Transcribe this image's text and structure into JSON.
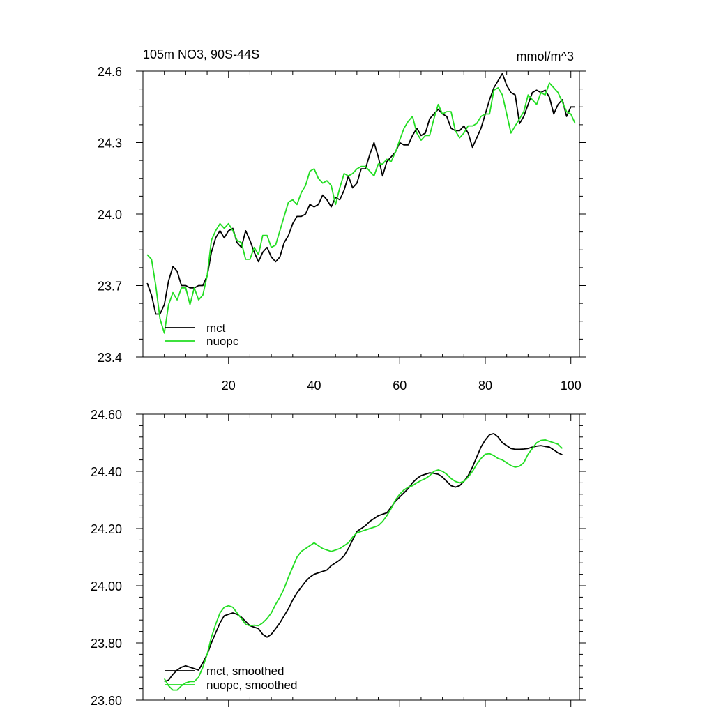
{
  "chart_data": [
    {
      "type": "line",
      "title": "105m NO3, 90S-44S",
      "units": "mmol/m^3",
      "xlim": [
        0,
        102
      ],
      "ylim": [
        23.4,
        24.6
      ],
      "xticks": [
        20,
        40,
        60,
        80,
        100
      ],
      "xtick_labels": [
        "20",
        "40",
        "60",
        "80",
        "100"
      ],
      "yticks": [
        23.4,
        23.7,
        24.0,
        24.3,
        24.6
      ],
      "ytick_labels": [
        "23.4",
        "23.7",
        "24.0",
        "24.3",
        "24.6"
      ],
      "legend_position": "bottom-left",
      "series": [
        {
          "name": "mct",
          "color": "#000000",
          "x": [
            1,
            2,
            3,
            4,
            5,
            6,
            7,
            8,
            9,
            10,
            11,
            12,
            13,
            14,
            15,
            16,
            17,
            18,
            19,
            20,
            21,
            22,
            23,
            24,
            25,
            26,
            27,
            28,
            29,
            30,
            31,
            32,
            33,
            34,
            35,
            36,
            37,
            38,
            39,
            40,
            41,
            42,
            43,
            44,
            45,
            46,
            47,
            48,
            49,
            50,
            51,
            52,
            53,
            54,
            55,
            56,
            57,
            58,
            59,
            60,
            61,
            62,
            63,
            64,
            65,
            66,
            67,
            68,
            69,
            70,
            71,
            72,
            73,
            74,
            75,
            76,
            77,
            78,
            79,
            80,
            81,
            82,
            83,
            84,
            85,
            86,
            87,
            88,
            89,
            90,
            91,
            92,
            93,
            94,
            95,
            96,
            97,
            98,
            99,
            100,
            101
          ],
          "values": [
            23.71,
            23.66,
            23.58,
            23.58,
            23.62,
            23.72,
            23.78,
            23.76,
            23.7,
            23.7,
            23.69,
            23.69,
            23.7,
            23.7,
            23.74,
            23.84,
            23.9,
            23.93,
            23.9,
            23.93,
            23.94,
            23.88,
            23.86,
            23.93,
            23.89,
            23.84,
            23.8,
            23.84,
            23.86,
            23.82,
            23.8,
            23.82,
            23.88,
            23.91,
            23.96,
            23.99,
            23.99,
            24.0,
            24.04,
            24.03,
            24.04,
            24.08,
            24.06,
            24.03,
            24.07,
            24.06,
            24.1,
            24.16,
            24.11,
            24.13,
            24.19,
            24.19,
            24.25,
            24.3,
            24.24,
            24.16,
            24.22,
            24.24,
            24.26,
            24.3,
            24.29,
            24.29,
            24.33,
            24.36,
            24.33,
            24.34,
            24.4,
            24.42,
            24.44,
            24.42,
            24.41,
            24.36,
            24.35,
            24.35,
            24.37,
            24.34,
            24.28,
            24.32,
            24.36,
            24.42,
            24.48,
            24.53,
            24.56,
            24.59,
            24.54,
            24.51,
            24.5,
            24.38,
            24.41,
            24.46,
            24.51,
            24.52,
            24.51,
            24.52,
            24.49,
            24.42,
            24.46,
            24.48,
            24.41,
            24.45,
            24.45
          ]
        },
        {
          "name": "nuopc",
          "color": "#22dd22",
          "x": [
            1,
            2,
            3,
            4,
            5,
            6,
            7,
            8,
            9,
            10,
            11,
            12,
            13,
            14,
            15,
            16,
            17,
            18,
            19,
            20,
            21,
            22,
            23,
            24,
            25,
            26,
            27,
            28,
            29,
            30,
            31,
            32,
            33,
            34,
            35,
            36,
            37,
            38,
            39,
            40,
            41,
            42,
            43,
            44,
            45,
            46,
            47,
            48,
            49,
            50,
            51,
            52,
            53,
            54,
            55,
            56,
            57,
            58,
            59,
            60,
            61,
            62,
            63,
            64,
            65,
            66,
            67,
            68,
            69,
            70,
            71,
            72,
            73,
            74,
            75,
            76,
            77,
            78,
            79,
            80,
            81,
            82,
            83,
            84,
            85,
            86,
            87,
            88,
            89,
            90,
            91,
            92,
            93,
            94,
            95,
            96,
            97,
            98,
            99,
            100,
            101
          ],
          "values": [
            23.83,
            23.81,
            23.7,
            23.56,
            23.5,
            23.62,
            23.67,
            23.64,
            23.69,
            23.69,
            23.62,
            23.69,
            23.64,
            23.66,
            23.74,
            23.89,
            23.93,
            23.96,
            23.94,
            23.96,
            23.93,
            23.89,
            23.88,
            23.81,
            23.81,
            23.86,
            23.83,
            23.91,
            23.91,
            23.86,
            23.87,
            23.93,
            23.99,
            24.05,
            24.06,
            24.04,
            24.09,
            24.12,
            24.18,
            24.19,
            24.15,
            24.13,
            24.14,
            24.12,
            24.04,
            24.11,
            24.17,
            24.16,
            24.17,
            24.19,
            24.2,
            24.2,
            24.18,
            24.16,
            24.21,
            24.21,
            24.23,
            24.22,
            24.26,
            24.31,
            24.36,
            24.39,
            24.41,
            24.34,
            24.31,
            24.33,
            24.33,
            24.4,
            24.46,
            24.42,
            24.43,
            24.43,
            24.35,
            24.32,
            24.34,
            24.37,
            24.37,
            24.38,
            24.41,
            24.42,
            24.42,
            24.52,
            24.53,
            24.5,
            24.42,
            24.34,
            24.37,
            24.4,
            24.43,
            24.5,
            24.48,
            24.46,
            24.51,
            24.5,
            24.55,
            24.53,
            24.51,
            24.47,
            24.43,
            24.42,
            24.38
          ]
        }
      ]
    },
    {
      "type": "line",
      "title": "",
      "xlim": [
        0,
        102
      ],
      "ylim": [
        23.6,
        24.6
      ],
      "xticks": [
        20,
        40,
        60,
        80,
        100
      ],
      "yticks": [
        23.6,
        23.8,
        24.0,
        24.2,
        24.4,
        24.6
      ],
      "ytick_labels": [
        "23.60",
        "23.80",
        "24.00",
        "24.20",
        "24.40",
        "24.60"
      ],
      "legend_position": "bottom-left",
      "series": [
        {
          "name": "mct, smoothed",
          "color": "#000000",
          "x": [
            5,
            6,
            7,
            8,
            9,
            10,
            11,
            12,
            13,
            14,
            15,
            16,
            17,
            18,
            19,
            20,
            21,
            22,
            23,
            24,
            25,
            26,
            27,
            28,
            29,
            30,
            31,
            32,
            33,
            34,
            35,
            36,
            37,
            38,
            39,
            40,
            41,
            42,
            43,
            44,
            45,
            46,
            47,
            48,
            49,
            50,
            51,
            52,
            53,
            54,
            55,
            56,
            57,
            58,
            59,
            60,
            61,
            62,
            63,
            64,
            65,
            66,
            67,
            68,
            69,
            70,
            71,
            72,
            73,
            74,
            75,
            76,
            77,
            78,
            79,
            80,
            81,
            82,
            83,
            84,
            85,
            86,
            87,
            88,
            89,
            90,
            91,
            92,
            93,
            94,
            95,
            96,
            97,
            98
          ],
          "values": [
            23.665,
            23.67,
            23.69,
            23.705,
            23.715,
            23.72,
            23.715,
            23.71,
            23.705,
            23.73,
            23.76,
            23.8,
            23.835,
            23.87,
            23.895,
            23.9,
            23.905,
            23.9,
            23.89,
            23.875,
            23.86,
            23.855,
            23.85,
            23.83,
            23.82,
            23.83,
            23.85,
            23.87,
            23.895,
            23.92,
            23.95,
            23.975,
            23.995,
            24.015,
            24.03,
            24.04,
            24.045,
            24.05,
            24.055,
            24.07,
            24.08,
            24.09,
            24.105,
            24.13,
            24.16,
            24.19,
            24.2,
            24.21,
            24.225,
            24.235,
            24.245,
            24.25,
            24.255,
            24.275,
            24.295,
            24.31,
            24.325,
            24.34,
            24.36,
            24.375,
            24.385,
            24.39,
            24.395,
            24.393,
            24.39,
            24.38,
            24.365,
            24.35,
            24.345,
            24.35,
            24.365,
            24.385,
            24.415,
            24.45,
            24.485,
            24.51,
            24.528,
            24.532,
            24.52,
            24.5,
            24.49,
            24.48,
            24.477,
            24.477,
            24.478,
            24.48,
            24.485,
            24.488,
            24.49,
            24.487,
            24.485,
            24.475,
            24.465,
            24.458
          ]
        },
        {
          "name": "nuopc, smoothed",
          "color": "#22dd22",
          "x": [
            5,
            6,
            7,
            8,
            9,
            10,
            11,
            12,
            13,
            14,
            15,
            16,
            17,
            18,
            19,
            20,
            21,
            22,
            23,
            24,
            25,
            26,
            27,
            28,
            29,
            30,
            31,
            32,
            33,
            34,
            35,
            36,
            37,
            38,
            39,
            40,
            41,
            42,
            43,
            44,
            45,
            46,
            47,
            48,
            49,
            50,
            51,
            52,
            53,
            54,
            55,
            56,
            57,
            58,
            59,
            60,
            61,
            62,
            63,
            64,
            65,
            66,
            67,
            68,
            69,
            70,
            71,
            72,
            73,
            74,
            75,
            76,
            77,
            78,
            79,
            80,
            81,
            82,
            83,
            84,
            85,
            86,
            87,
            88,
            89,
            90,
            91,
            92,
            93,
            94,
            95,
            96,
            97,
            98
          ],
          "values": [
            23.675,
            23.65,
            23.635,
            23.635,
            23.65,
            23.66,
            23.665,
            23.665,
            23.68,
            23.715,
            23.76,
            23.82,
            23.865,
            23.905,
            23.925,
            23.93,
            23.925,
            23.905,
            23.885,
            23.865,
            23.86,
            23.862,
            23.86,
            23.87,
            23.885,
            23.905,
            23.935,
            23.96,
            23.99,
            24.03,
            24.065,
            24.1,
            24.12,
            24.13,
            24.14,
            24.15,
            24.14,
            24.13,
            24.125,
            24.12,
            24.125,
            24.13,
            24.14,
            24.15,
            24.17,
            24.185,
            24.19,
            24.195,
            24.2,
            24.205,
            24.21,
            24.225,
            24.245,
            24.27,
            24.3,
            24.32,
            24.335,
            24.345,
            24.35,
            24.36,
            24.368,
            24.375,
            24.385,
            24.4,
            24.405,
            24.4,
            24.39,
            24.375,
            24.365,
            24.36,
            24.365,
            24.38,
            24.4,
            24.425,
            24.445,
            24.46,
            24.462,
            24.455,
            24.445,
            24.44,
            24.43,
            24.42,
            24.415,
            24.418,
            24.43,
            24.46,
            24.48,
            24.5,
            24.508,
            24.51,
            24.505,
            24.5,
            24.495,
            24.48
          ]
        }
      ]
    }
  ]
}
